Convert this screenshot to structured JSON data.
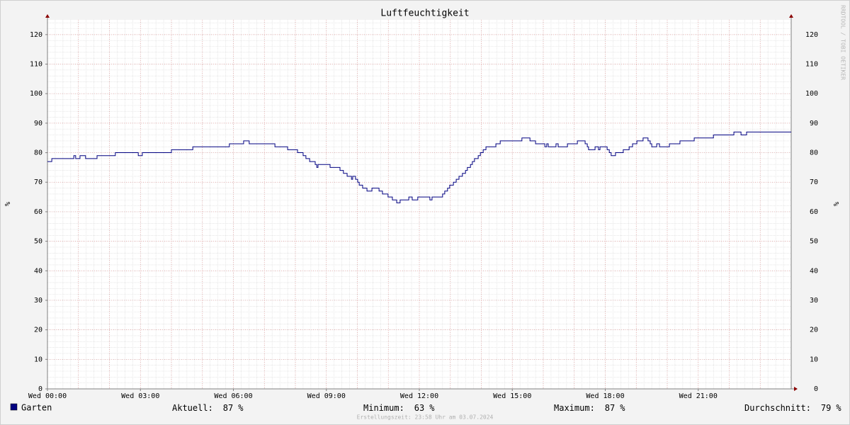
{
  "chart_data": {
    "type": "line",
    "title": "Luftfeuchtigkeit",
    "y_label": "%",
    "step": "post",
    "grid": true,
    "xlim": [
      0,
      24
    ],
    "xticks": [
      {
        "value": 0,
        "label": "Wed 00:00"
      },
      {
        "value": 3,
        "label": "Wed 03:00"
      },
      {
        "value": 6,
        "label": "Wed 06:00"
      },
      {
        "value": 9,
        "label": "Wed 09:00"
      },
      {
        "value": 12,
        "label": "Wed 12:00"
      },
      {
        "value": 15,
        "label": "Wed 15:00"
      },
      {
        "value": 18,
        "label": "Wed 18:00"
      },
      {
        "value": 21,
        "label": "Wed 21:00"
      }
    ],
    "ylim": [
      0,
      125
    ],
    "yticks": [
      0,
      10,
      20,
      30,
      40,
      50,
      60,
      70,
      80,
      90,
      100,
      110,
      120
    ],
    "x": [
      0.0,
      0.14,
      0.85,
      0.91,
      1.05,
      1.23,
      1.6,
      2.19,
      2.93,
      3.06,
      4.0,
      4.69,
      5.87,
      6.33,
      6.51,
      7.34,
      7.75,
      8.07,
      8.25,
      8.34,
      8.46,
      8.64,
      8.69,
      8.73,
      9.12,
      9.44,
      9.55,
      9.67,
      9.81,
      9.85,
      9.94,
      10.01,
      10.06,
      10.17,
      10.31,
      10.47,
      10.7,
      10.81,
      10.99,
      11.13,
      11.27,
      11.38,
      11.66,
      11.77,
      11.95,
      12.34,
      12.41,
      12.75,
      12.82,
      12.91,
      12.98,
      13.1,
      13.19,
      13.28,
      13.39,
      13.49,
      13.55,
      13.65,
      13.71,
      13.78,
      13.9,
      13.97,
      14.06,
      14.15,
      14.47,
      14.61,
      15.31,
      15.57,
      15.75,
      16.05,
      16.11,
      16.16,
      16.41,
      16.48,
      16.78,
      17.1,
      17.35,
      17.42,
      17.46,
      17.67,
      17.78,
      17.83,
      18.06,
      18.13,
      18.19,
      18.33,
      18.58,
      18.77,
      18.88,
      19.02,
      19.22,
      19.38,
      19.45,
      19.5,
      19.66,
      19.75,
      20.07,
      20.41,
      20.87,
      21.49,
      22.15,
      22.38,
      22.56,
      24.0
    ],
    "series": [
      {
        "name": "Garten",
        "color": "#000080",
        "values": [
          77,
          78,
          79,
          78,
          79,
          78,
          79,
          80,
          79,
          80,
          81,
          82,
          83,
          84,
          83,
          82,
          81,
          80,
          79,
          78,
          77,
          76,
          75,
          76,
          75,
          74,
          73,
          72,
          71,
          72,
          71,
          70,
          69,
          68,
          67,
          68,
          67,
          66,
          65,
          64,
          63,
          64,
          65,
          64,
          65,
          64,
          65,
          66,
          67,
          68,
          69,
          70,
          71,
          72,
          73,
          74,
          75,
          76,
          77,
          78,
          79,
          80,
          81,
          82,
          83,
          84,
          85,
          84,
          83,
          82,
          83,
          82,
          83,
          82,
          83,
          84,
          83,
          82,
          81,
          82,
          81,
          82,
          81,
          80,
          79,
          80,
          81,
          82,
          83,
          84,
          85,
          84,
          83,
          82,
          83,
          82,
          83,
          84,
          85,
          86,
          87,
          86,
          87,
          87
        ]
      }
    ],
    "stats": [
      {
        "label": "Aktuell:",
        "value": 87,
        "unit": "%"
      },
      {
        "label": "Minimum:",
        "value": 63,
        "unit": "%"
      },
      {
        "label": "Maximum:",
        "value": 87,
        "unit": "%"
      },
      {
        "label": "Durchschnitt:",
        "value": 79,
        "unit": "%"
      }
    ],
    "footer": "Erstellungszeit: 23:58 Uhr am 03.07.2024",
    "watermark": "RRDTOOL / TOBI OETIKER"
  }
}
